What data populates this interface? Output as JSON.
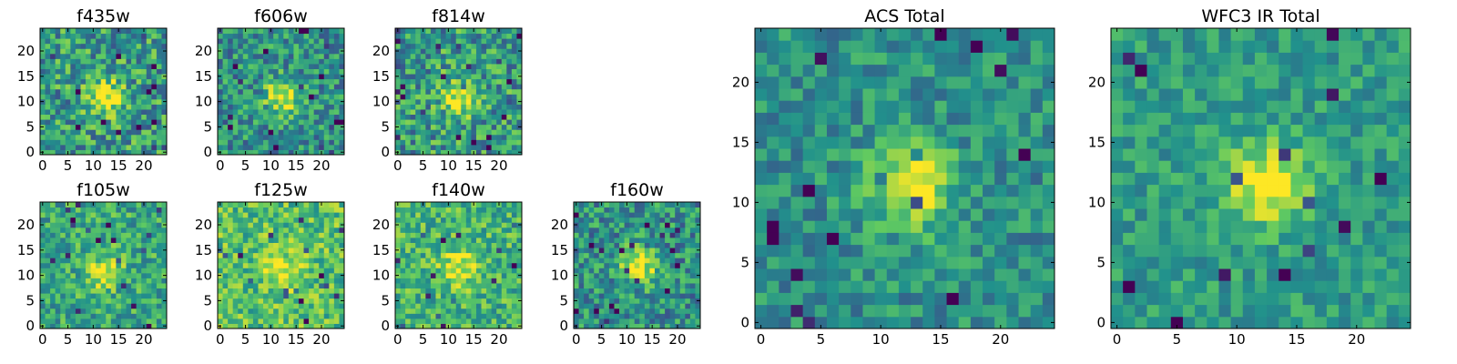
{
  "figure": {
    "colormap": [
      "#440154",
      "#3b528b",
      "#21918c",
      "#5ec962",
      "#fde725"
    ]
  },
  "chart_data": [
    {
      "type": "heatmap",
      "id": "f435w",
      "title": "f435w",
      "x_range": [
        0,
        24
      ],
      "y_range": [
        0,
        24
      ],
      "xticks": [
        "0",
        "5",
        "10",
        "15",
        "20"
      ],
      "yticks": [
        "0",
        "5",
        "10",
        "15",
        "20"
      ],
      "source_center": [
        12.5,
        11.0
      ],
      "peak_value": 1.0,
      "background_level": 0.55,
      "noise": 0.28,
      "grid": false
    },
    {
      "type": "heatmap",
      "id": "f606w",
      "title": "f606w",
      "x_range": [
        0,
        24
      ],
      "y_range": [
        0,
        24
      ],
      "xticks": [
        "0",
        "5",
        "10",
        "15",
        "20"
      ],
      "yticks": [
        "0",
        "5",
        "10",
        "15",
        "20"
      ],
      "source_center": [
        12.5,
        11.0
      ],
      "peak_value": 1.0,
      "background_level": 0.5,
      "noise": 0.25,
      "grid": false
    },
    {
      "type": "heatmap",
      "id": "f814w",
      "title": "f814w",
      "x_range": [
        0,
        24
      ],
      "y_range": [
        0,
        24
      ],
      "xticks": [
        "0",
        "5",
        "10",
        "15",
        "20"
      ],
      "yticks": [
        "0",
        "5",
        "10",
        "15",
        "20"
      ],
      "source_center": [
        12.5,
        11.0
      ],
      "peak_value": 1.0,
      "background_level": 0.55,
      "noise": 0.28,
      "grid": false
    },
    {
      "type": "heatmap",
      "id": "f105w",
      "title": "f105w",
      "x_range": [
        0,
        24
      ],
      "y_range": [
        0,
        24
      ],
      "xticks": [
        "0",
        "5",
        "10",
        "15",
        "20"
      ],
      "yticks": [
        "0",
        "5",
        "10",
        "15",
        "20"
      ],
      "source_center": [
        12.0,
        11.0
      ],
      "peak_value": 1.0,
      "background_level": 0.6,
      "noise": 0.22,
      "grid": false
    },
    {
      "type": "heatmap",
      "id": "f125w",
      "title": "f125w",
      "x_range": [
        0,
        24
      ],
      "y_range": [
        0,
        24
      ],
      "xticks": [
        "0",
        "5",
        "10",
        "15",
        "20"
      ],
      "yticks": [
        "0",
        "5",
        "10",
        "15",
        "20"
      ],
      "source_center": [
        12.5,
        11.0
      ],
      "peak_value": 1.0,
      "background_level": 0.7,
      "noise": 0.22,
      "grid": false
    },
    {
      "type": "heatmap",
      "id": "f140w",
      "title": "f140w",
      "x_range": [
        0,
        24
      ],
      "y_range": [
        0,
        24
      ],
      "xticks": [
        "0",
        "5",
        "10",
        "15",
        "20"
      ],
      "yticks": [
        "0",
        "5",
        "10",
        "15",
        "20"
      ],
      "source_center": [
        12.0,
        11.5
      ],
      "peak_value": 1.0,
      "background_level": 0.65,
      "noise": 0.22,
      "grid": false
    },
    {
      "type": "heatmap",
      "id": "f160w",
      "title": "f160w",
      "x_range": [
        0,
        24
      ],
      "y_range": [
        0,
        24
      ],
      "xticks": [
        "0",
        "5",
        "10",
        "15",
        "20"
      ],
      "yticks": [
        "0",
        "5",
        "10",
        "15",
        "20"
      ],
      "source_center": [
        12.5,
        12.0
      ],
      "peak_value": 1.0,
      "background_level": 0.5,
      "noise": 0.25,
      "grid": false
    },
    {
      "type": "heatmap",
      "id": "acs-total",
      "title": "ACS Total",
      "x_range": [
        0,
        24
      ],
      "y_range": [
        0,
        24
      ],
      "xticks": [
        "0",
        "5",
        "10",
        "15",
        "20"
      ],
      "yticks": [
        "0",
        "5",
        "10",
        "15",
        "20"
      ],
      "source_center": [
        12.5,
        11.5
      ],
      "peak_value": 1.0,
      "background_level": 0.5,
      "noise": 0.18,
      "grid": false
    },
    {
      "type": "heatmap",
      "id": "wfc3-ir-total",
      "title": "WFC3 IR Total",
      "x_range": [
        0,
        24
      ],
      "y_range": [
        0,
        24
      ],
      "xticks": [
        "0",
        "5",
        "10",
        "15",
        "20"
      ],
      "yticks": [
        "0",
        "5",
        "10",
        "15",
        "20"
      ],
      "source_center": [
        12.5,
        11.5
      ],
      "peak_value": 1.0,
      "background_level": 0.55,
      "noise": 0.15,
      "grid": false
    }
  ]
}
